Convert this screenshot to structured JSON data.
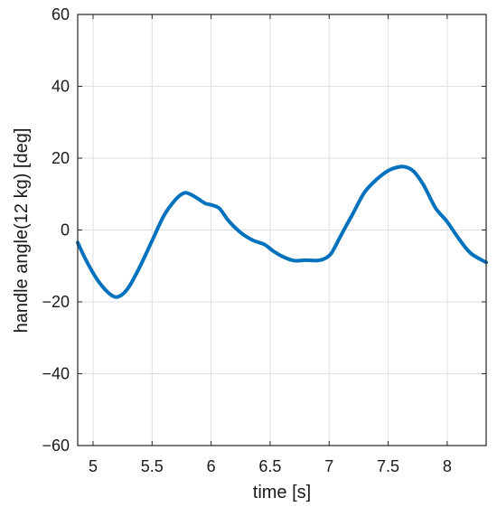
{
  "chart_data": {
    "type": "line",
    "title": "",
    "xlabel": "time [s]",
    "ylabel": "handle angle(12 kg) [deg]",
    "xlim": [
      4.87,
      8.33
    ],
    "ylim": [
      -60,
      60
    ],
    "x_ticks": [
      5,
      5.5,
      6,
      6.5,
      7,
      7.5,
      8
    ],
    "x_tick_labels": [
      "5",
      "5.5",
      "6",
      "6.5",
      "7",
      "7.5",
      "8"
    ],
    "y_ticks": [
      -60,
      -40,
      -20,
      0,
      20,
      40,
      60
    ],
    "y_tick_labels": [
      "−60",
      "−40",
      "−20",
      "0",
      "20",
      "40",
      "60"
    ],
    "grid": true,
    "line_color": "#0072BD",
    "series": [
      {
        "x": [
          4.87,
          4.95,
          5.05,
          5.15,
          5.22,
          5.3,
          5.4,
          5.5,
          5.6,
          5.7,
          5.77,
          5.82,
          5.88,
          5.95,
          6.0,
          6.07,
          6.15,
          6.25,
          6.35,
          6.45,
          6.52,
          6.6,
          6.7,
          6.8,
          6.9,
          6.96,
          7.02,
          7.1,
          7.2,
          7.3,
          7.4,
          7.5,
          7.6,
          7.66,
          7.72,
          7.8,
          7.9,
          8.0,
          8.1,
          8.2,
          8.33
        ],
        "y": [
          -3.5,
          -9,
          -14.5,
          -18,
          -18.5,
          -16,
          -10,
          -3,
          4,
          8.5,
          10.3,
          10,
          8.9,
          7.4,
          7,
          6,
          2.5,
          -0.7,
          -2.8,
          -4,
          -5.7,
          -7.3,
          -8.5,
          -8.4,
          -8.5,
          -8,
          -6.4,
          -1.5,
          4.5,
          10.5,
          14,
          16.5,
          17.6,
          17.4,
          16.2,
          12.5,
          6.2,
          2.3,
          -2.5,
          -6.5,
          -9
        ]
      }
    ]
  }
}
